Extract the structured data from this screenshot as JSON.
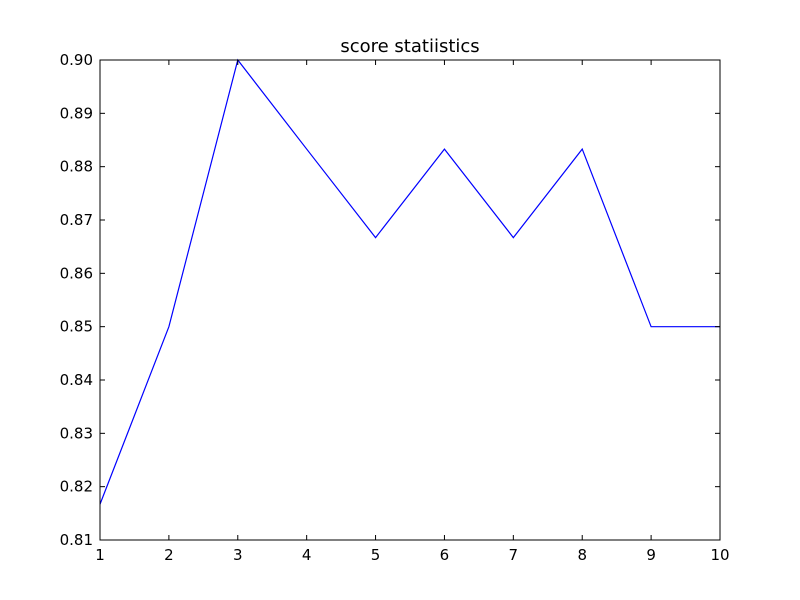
{
  "chart_data": {
    "type": "line",
    "title": "score statiistics",
    "xlabel": "",
    "ylabel": "",
    "x": [
      1,
      2,
      3,
      4,
      5,
      6,
      7,
      8,
      9,
      10
    ],
    "series": [
      {
        "values": [
          0.8167,
          0.85,
          0.9,
          0.8833,
          0.8667,
          0.8833,
          0.8667,
          0.8833,
          0.85,
          0.85
        ],
        "color": "#0000ff"
      }
    ],
    "xlim": [
      1,
      10
    ],
    "ylim": [
      0.81,
      0.9
    ],
    "xticks": [
      "1",
      "2",
      "3",
      "4",
      "5",
      "6",
      "7",
      "8",
      "9",
      "10"
    ],
    "yticks": [
      "0.81",
      "0.82",
      "0.83",
      "0.84",
      "0.85",
      "0.86",
      "0.87",
      "0.88",
      "0.89",
      "0.90"
    ],
    "grid": false,
    "legend": "none"
  }
}
